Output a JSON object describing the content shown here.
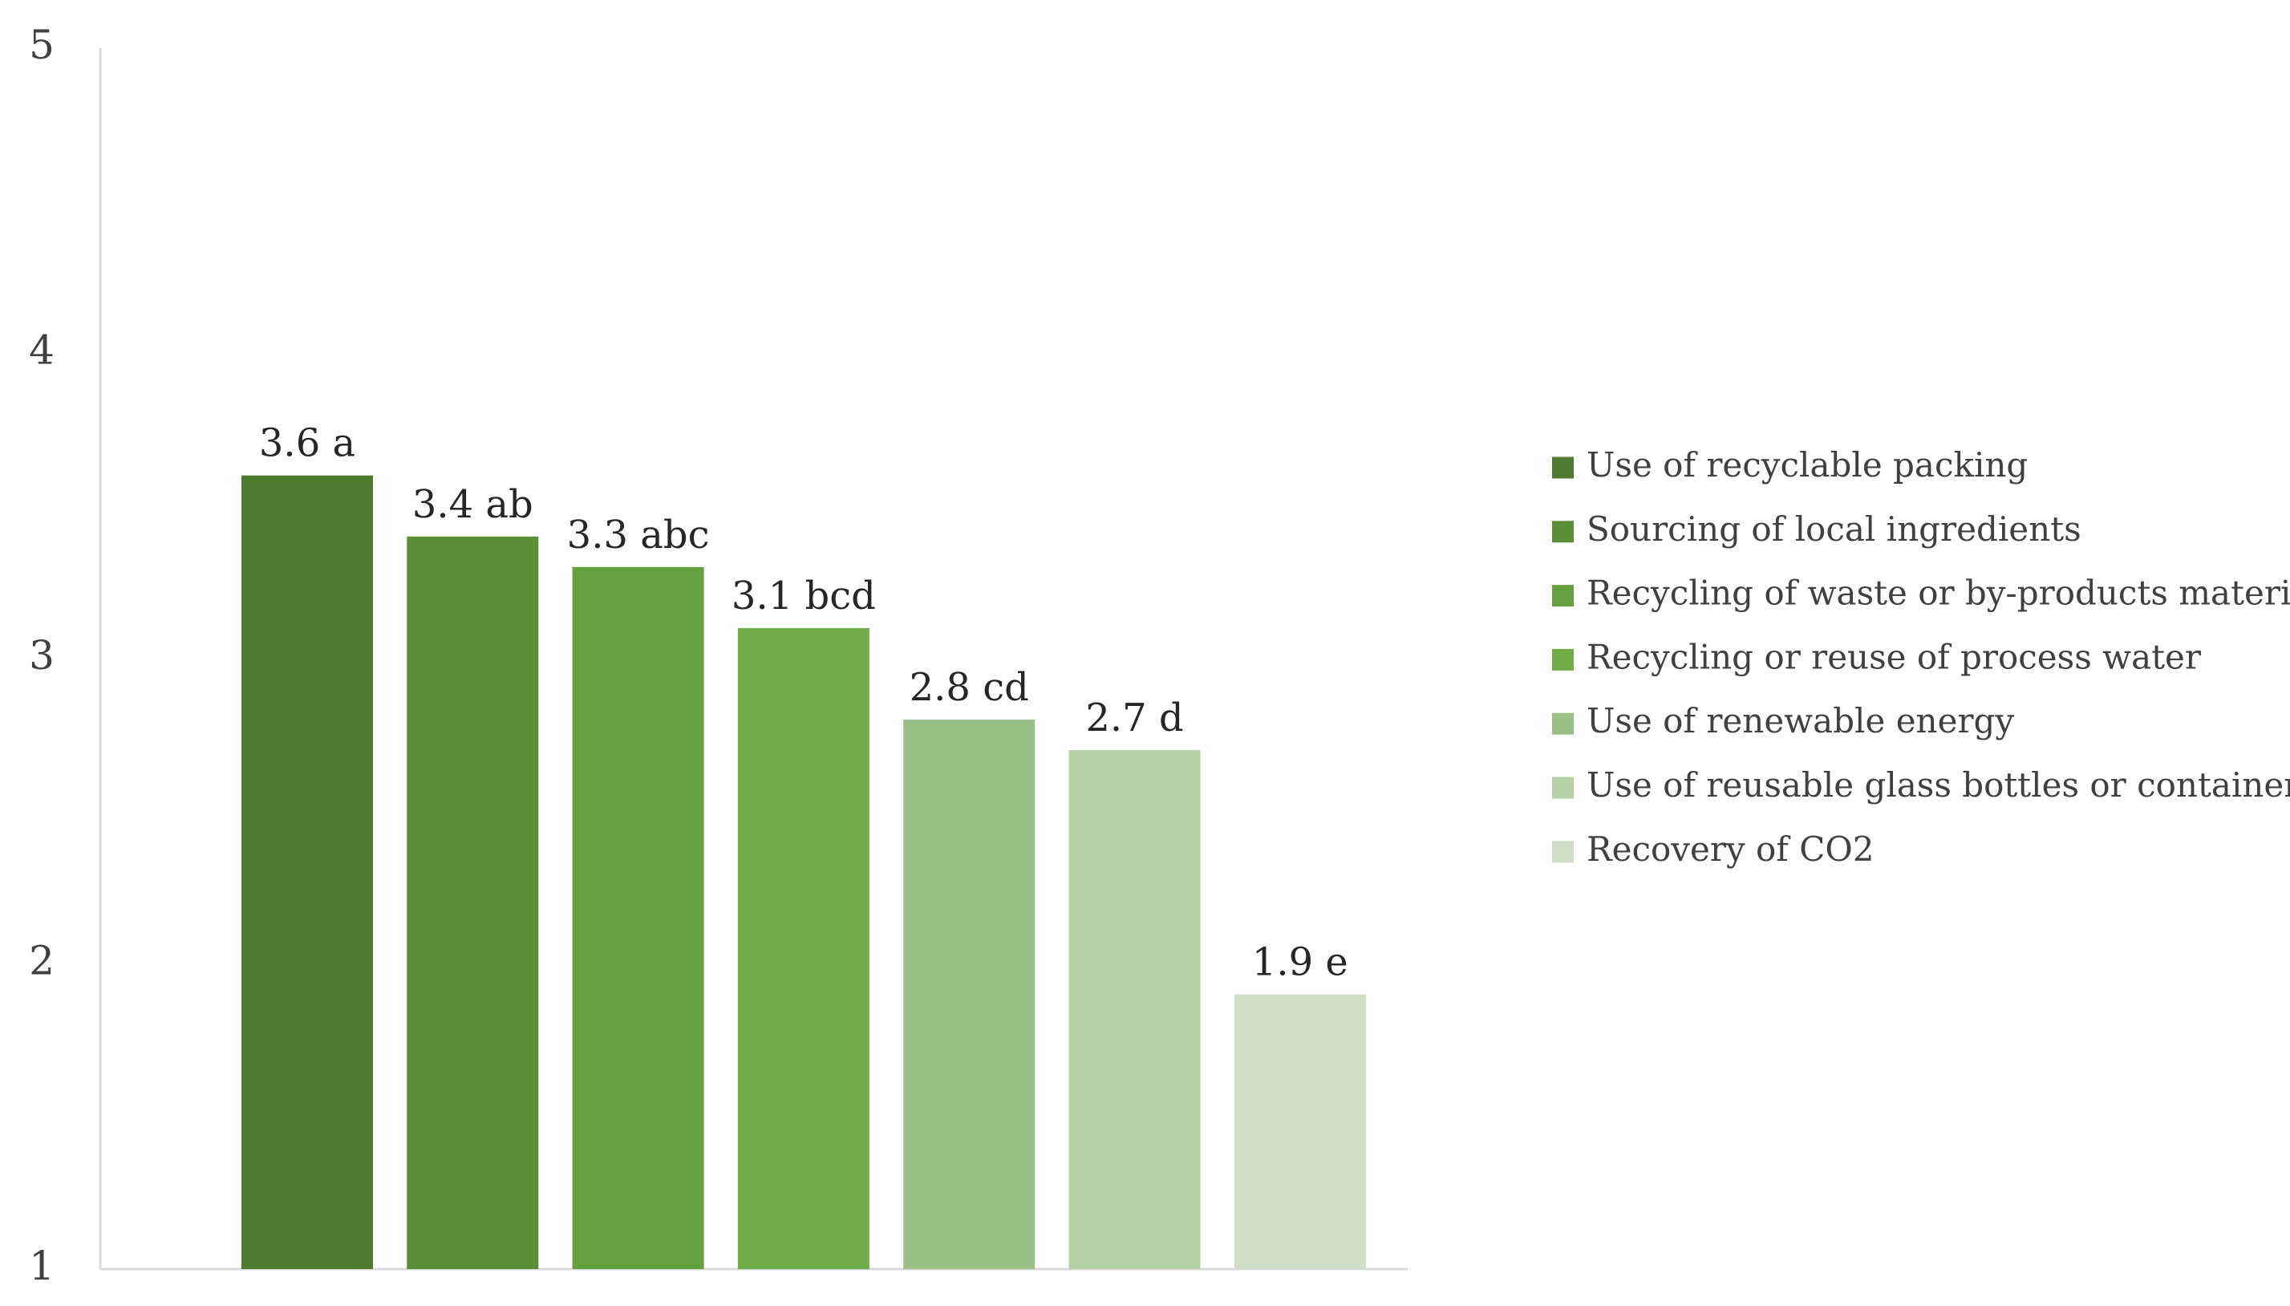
{
  "chart_data": {
    "type": "bar",
    "title": "",
    "xlabel": "",
    "ylabel": "",
    "ylim": [
      1,
      5
    ],
    "yticks": [
      1,
      2,
      3,
      4,
      5
    ],
    "grid": false,
    "legend_position": "right",
    "categories": [
      "Use of recyclable packing",
      "Sourcing of local ingredients",
      "Recycling of waste or by-products material",
      "Recycling or reuse of process water",
      "Use of renewable energy",
      "Use of reusable glass bottles or containers",
      "Recovery of CO2"
    ],
    "values": [
      3.6,
      3.4,
      3.3,
      3.1,
      2.8,
      2.7,
      1.9
    ],
    "data_labels": [
      "3.6 a",
      "3.4 ab",
      "3.3 abc",
      "3.1 bcd",
      "2.8 cd",
      "2.7 d",
      "1.9 e"
    ],
    "colors": [
      "#4e7a2f",
      "#5a8f37",
      "#64a03e",
      "#70ad47",
      "#9bc085",
      "#b5d1a6",
      "#cfdfc6"
    ]
  }
}
